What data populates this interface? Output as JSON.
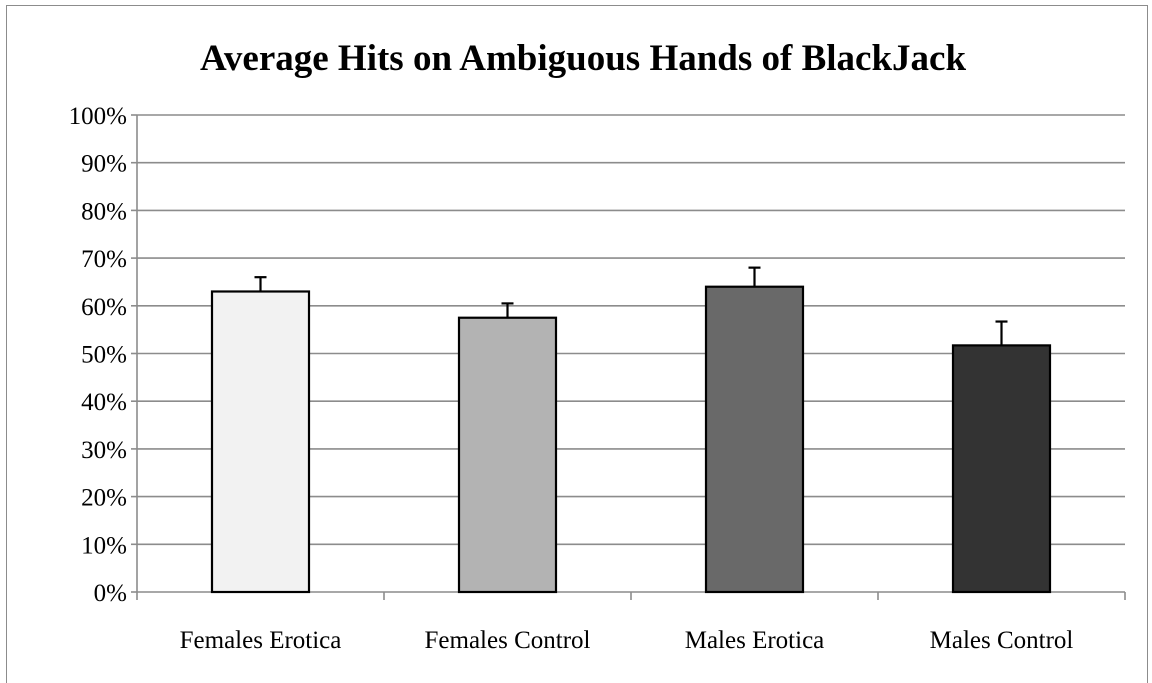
{
  "chart_data": {
    "type": "bar",
    "title": "Average Hits on Ambiguous Hands of BlackJack",
    "xlabel": "",
    "ylabel": "",
    "categories": [
      "Females Erotica",
      "Females Control",
      "Males Erotica",
      "Males Control"
    ],
    "values": [
      0.63,
      0.575,
      0.64,
      0.517
    ],
    "error_upper": [
      0.03,
      0.03,
      0.04,
      0.05
    ],
    "bar_colors": [
      "#f2f2f2",
      "#b3b3b3",
      "#696969",
      "#333333"
    ],
    "ylim": [
      0,
      1
    ],
    "yticks": [
      0,
      0.1,
      0.2,
      0.3,
      0.4,
      0.5,
      0.6,
      0.7,
      0.8,
      0.9,
      1.0
    ],
    "ytick_labels": [
      "0%",
      "10%",
      "20%",
      "30%",
      "40%",
      "50%",
      "60%",
      "70%",
      "80%",
      "90%",
      "100%"
    ],
    "grid": true,
    "legend": "none"
  }
}
